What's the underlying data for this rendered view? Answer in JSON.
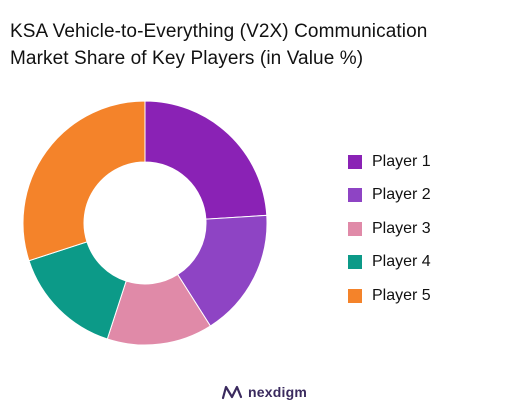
{
  "chart_data": {
    "type": "pie",
    "style": "donut",
    "title_lines": [
      "KSA Vehicle-to-Everything (V2X) Communication",
      "Market Share of Key Players (in Value %)"
    ],
    "categories": [
      "Player 1",
      "Player 2",
      "Player 3",
      "Player 4",
      "Player 5"
    ],
    "values": [
      24,
      17,
      14,
      15,
      30
    ],
    "colors": [
      "#8a22b5",
      "#8e44c4",
      "#e08aa8",
      "#0c9a88",
      "#f4832a"
    ],
    "legend_position": "right"
  },
  "brand": {
    "name": "nexdigm",
    "color": "#3a2a5e"
  }
}
